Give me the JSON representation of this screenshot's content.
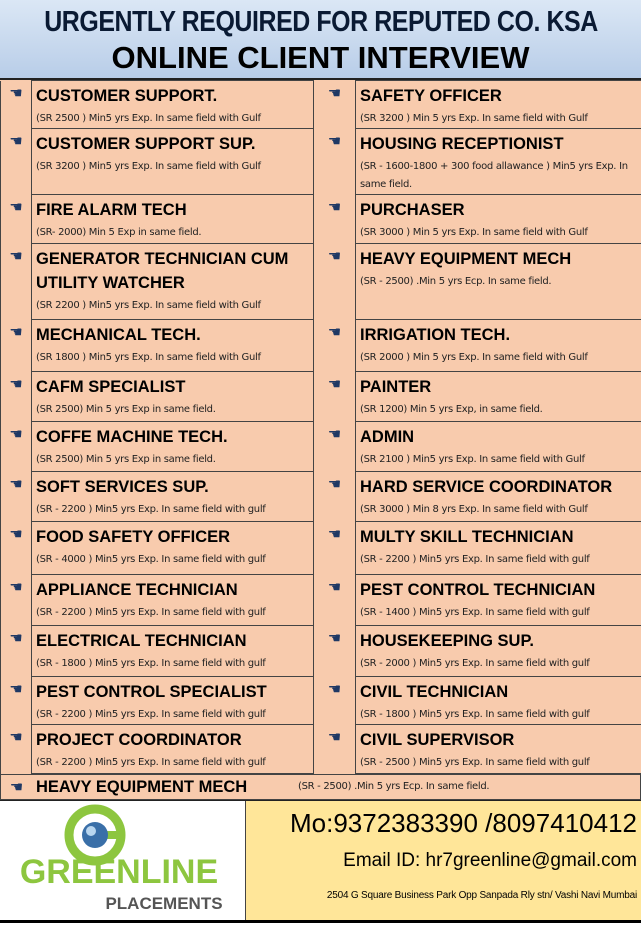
{
  "header": {
    "line1": "URGENTLY REQUIRED FOR REPUTED CO. KSA",
    "line2": "ONLINE CLIENT INTERVIEW"
  },
  "bullet_icon": "pointing-hand-icon",
  "rows": [
    {
      "left": {
        "title": "CUSTOMER SUPPORT.",
        "desc": "(SR 2500 ) Min5 yrs Exp. In same field with Gulf"
      },
      "right": {
        "title": "SAFETY OFFICER",
        "desc": "(SR 3200 ) Min 5 yrs Exp. In same field with Gulf"
      }
    },
    {
      "left": {
        "title": "CUSTOMER SUPPORT SUP.",
        "desc": "(SR 3200 ) Min5 yrs Exp. In same field with Gulf"
      },
      "right": {
        "title": "HOUSING RECEPTIONIST",
        "desc": "(SR - 1600-1800 + 300 food allawance ) Min5 yrs Exp. In same field."
      }
    },
    {
      "left": {
        "title": "FIRE ALARM TECH",
        "desc": "(SR- 2000) Min 5 Exp in same field."
      },
      "right": {
        "title": "PURCHASER",
        "desc": "(SR 3000 ) Min 5 yrs Exp. In same field with Gulf"
      }
    },
    {
      "left": {
        "title": "GENERATOR TECHNICIAN CUM UTILITY WATCHER",
        "desc": "(SR 2200 ) Min5 yrs Exp. In same field with Gulf"
      },
      "right": {
        "title": "HEAVY EQUIPMENT MECH",
        "desc": "(SR - 2500) .Min 5 yrs Ecp. In same field."
      }
    },
    {
      "left": {
        "title": "MECHANICAL TECH.",
        "desc": "(SR 1800 ) Min5 yrs Exp. In same field with Gulf"
      },
      "right": {
        "title": "IRRIGATION TECH.",
        "desc": "(SR 2000 ) Min 5 yrs Exp. In same field with Gulf"
      }
    },
    {
      "left": {
        "title": "CAFM SPECIALIST",
        "desc": "(SR 2500) Min 5 yrs Exp in same field."
      },
      "right": {
        "title": "PAINTER",
        "desc": "(SR 1200) Min 5 yrs Exp, in same field."
      }
    },
    {
      "left": {
        "title": "COFFE MACHINE TECH.",
        "desc": "(SR 2500) Min 5 yrs Exp in same field."
      },
      "right": {
        "title": "ADMIN",
        "desc": "(SR 2100 ) Min5 yrs Exp. In same field with Gulf"
      }
    },
    {
      "left": {
        "title": "SOFT SERVICES SUP.",
        "desc": "(SR - 2200 ) Min5 yrs Exp. In same field with gulf"
      },
      "right": {
        "title": "HARD SERVICE COORDINATOR",
        "desc": "(SR 3000 ) Min 8 yrs Exp. In same field with Gulf"
      }
    },
    {
      "left": {
        "title": "FOOD SAFETY OFFICER",
        "desc": "(SR - 4000 ) Min5 yrs Exp. In same field with gulf"
      },
      "right": {
        "title": "MULTY SKILL TECHNICIAN",
        "desc": "(SR - 2200 ) Min5 yrs Exp. In same field with gulf"
      }
    },
    {
      "left": {
        "title": "APPLIANCE TECHNICIAN",
        "desc": "(SR - 2200 ) Min5 yrs Exp. In same field with gulf"
      },
      "right": {
        "title": "PEST CONTROL TECHNICIAN",
        "desc": "(SR - 1400 ) Min5 yrs Exp. In same field with gulf"
      }
    },
    {
      "left": {
        "title": "ELECTRICAL TECHNICIAN",
        "desc": "(SR - 1800 ) Min5 yrs Exp. In same field with gulf"
      },
      "right": {
        "title": "HOUSEKEEPING SUP.",
        "desc": "(SR - 2000 ) Min5 yrs Exp. In same field with gulf"
      }
    },
    {
      "left": {
        "title": "PEST CONTROL SPECIALIST",
        "desc": "(SR - 2200 ) Min5 yrs Exp. In same field with gulf"
      },
      "right": {
        "title": "CIVIL TECHNICIAN",
        "desc": "(SR - 1800 ) Min5 yrs Exp. In same field with gulf"
      }
    },
    {
      "left": {
        "title": "PROJECT COORDINATOR",
        "desc": "(SR - 2200 ) Min5 yrs Exp. In same field with gulf"
      },
      "right": {
        "title": "CIVIL SUPERVISOR",
        "desc": "(SR - 2500 ) Min5 yrs Exp. In same field with gulf"
      }
    }
  ],
  "last_row": {
    "title": "HEAVY EQUIPMENT MECH",
    "desc": "(SR - 2500) .Min 5 yrs Ecp. In same field."
  },
  "footer": {
    "logo_name": "GREENLINE",
    "logo_sub": "PLACEMENTS",
    "mobile": "Mo:9372383390 /8097410412",
    "email": "Email ID: hr7greenline@gmail.com",
    "address": "2504 G Square Business Park Opp Sanpada Rly stn/ Vashi  Navi Mumbai"
  },
  "colors": {
    "header_bg": "#c5d9f1",
    "cell_bg": "#f8cbad",
    "contact_bg": "#ffe699",
    "logo_green": "#8dc63f",
    "bullet": "#1f3864"
  }
}
